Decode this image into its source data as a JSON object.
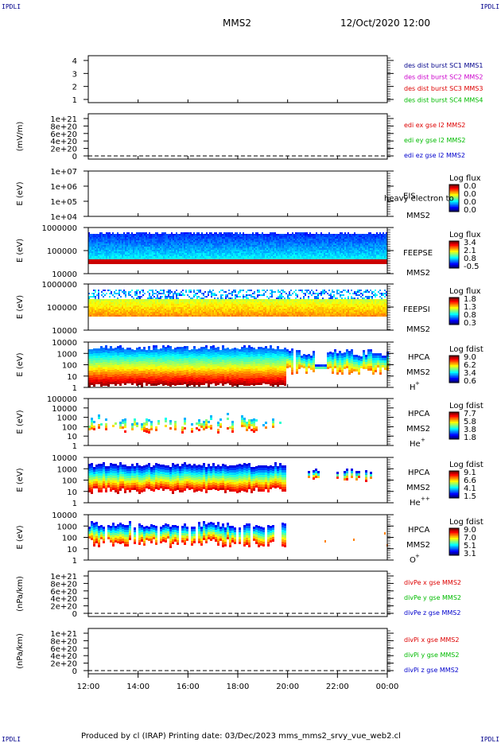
{
  "header": {
    "corner_tl": "IPDLI",
    "corner_tr": "IPDLI",
    "corner_bl": "IPDLI",
    "corner_br": "IPDLI",
    "spacecraft": "MMS2",
    "datetime": "12/Oct/2020 12:00"
  },
  "footer": {
    "text": "Produced by cl (IRAP)   Printing date: 03/Dec/2023   mms_mms2_srvy_vue_web2.cl"
  },
  "colors": {
    "mms1": "#00008b",
    "mms2": "#cc00cc",
    "mms3": "#dd0000",
    "mms4": "#00bb00",
    "red": "#dd0000",
    "green": "#00bb00",
    "blue": "#0000cc"
  },
  "chart_data": [
    {
      "type": "line",
      "id": "dist",
      "ticks": [
        "4",
        "3",
        "2",
        "1"
      ],
      "legend": [
        {
          "text": "des dist burst SC1 MMS1",
          "color": "#00008b"
        },
        {
          "text": "des dist burst SC2 MMS2",
          "color": "#cc00cc"
        },
        {
          "text": "des dist burst SC3 MMS3",
          "color": "#dd0000"
        },
        {
          "text": "des dist burst SC4 MMS4",
          "color": "#00bb00"
        }
      ]
    },
    {
      "type": "line",
      "id": "edi",
      "ylabel": "(mV/m)",
      "ticks": [
        "1e+21",
        "8e+20",
        "6e+20",
        "4e+20",
        "2e+20",
        "0"
      ],
      "legend": [
        {
          "text": "edi ex gse l2 MMS2",
          "color": "#dd0000"
        },
        {
          "text": "edi ey gse l2 MMS2",
          "color": "#00bb00"
        },
        {
          "text": "edi ez gse l2 MMS2",
          "color": "#0000cc"
        }
      ]
    },
    {
      "type": "heatmap",
      "id": "eis",
      "ylabel": "E (eV)",
      "ticks": [
        "1e+07",
        "1e+06",
        "1e+05",
        "1e+04"
      ],
      "instrument": "EIS",
      "instrument_extra": "heavy electron to",
      "sc": "MMS2",
      "cbar_title": "Log flux",
      "cbar_ticks": [
        "0.0",
        "0.0",
        "0.0",
        "0.0"
      ]
    },
    {
      "type": "heatmap",
      "id": "feepse",
      "ylabel": "E (eV)",
      "ticks": [
        "1000000",
        "100000",
        "10000"
      ],
      "instrument": "FEEPSE",
      "sc": "MMS2",
      "cbar_title": "Log flux",
      "cbar_ticks": [
        "3.4",
        "2.1",
        "0.8",
        "-0.5"
      ]
    },
    {
      "type": "heatmap",
      "id": "feepsi",
      "ylabel": "E (eV)",
      "ticks": [
        "1000000",
        "100000",
        "10000"
      ],
      "instrument": "FEEPSI",
      "sc": "MMS2",
      "cbar_title": "Log flux",
      "cbar_ticks": [
        "1.8",
        "1.3",
        "0.8",
        "0.3"
      ]
    },
    {
      "type": "heatmap",
      "id": "hpca_h",
      "ylabel": "E (eV)",
      "ticks": [
        "10000",
        "1000",
        "100",
        "10",
        "1"
      ],
      "instrument": "HPCA",
      "sc": "MMS2",
      "species": "H",
      "charge": "+",
      "cbar_title": "Log fdist",
      "cbar_ticks": [
        "9.0",
        "6.2",
        "3.4",
        "0.6"
      ]
    },
    {
      "type": "heatmap",
      "id": "hpca_he",
      "ylabel": "E (eV)",
      "ticks": [
        "100000",
        "10000",
        "1000",
        "100",
        "10",
        "1"
      ],
      "instrument": "HPCA",
      "sc": "MMS2",
      "species": "He",
      "charge": "+",
      "cbar_title": "Log fdist",
      "cbar_ticks": [
        "7.7",
        "5.8",
        "3.8",
        "1.8"
      ]
    },
    {
      "type": "heatmap",
      "id": "hpca_hepp",
      "ylabel": "E (eV)",
      "ticks": [
        "10000",
        "1000",
        "100",
        "10",
        "1"
      ],
      "instrument": "HPCA",
      "sc": "MMS2",
      "species": "He",
      "charge": "++",
      "cbar_title": "Log fdist",
      "cbar_ticks": [
        "9.1",
        "6.6",
        "4.1",
        "1.5"
      ]
    },
    {
      "type": "heatmap",
      "id": "hpca_o",
      "ylabel": "E (eV)",
      "ticks": [
        "10000",
        "1000",
        "100",
        "10",
        "1"
      ],
      "instrument": "HPCA",
      "sc": "MMS2",
      "species": "O",
      "charge": "+",
      "cbar_title": "Log fdist",
      "cbar_ticks": [
        "9.0",
        "7.0",
        "5.1",
        "3.1"
      ]
    },
    {
      "type": "line",
      "id": "divpe",
      "ylabel": "(nPa/km)",
      "ticks": [
        "1e+21",
        "8e+20",
        "6e+20",
        "4e+20",
        "2e+20",
        "0"
      ],
      "legend": [
        {
          "text": "divPe x gse MMS2",
          "color": "#dd0000"
        },
        {
          "text": "divPe y gse MMS2",
          "color": "#00bb00"
        },
        {
          "text": "divPe z gse MMS2",
          "color": "#0000cc"
        }
      ]
    },
    {
      "type": "line",
      "id": "divpi",
      "ylabel": "(nPa/km)",
      "ticks": [
        "1e+21",
        "8e+20",
        "6e+20",
        "4e+20",
        "2e+20",
        "0"
      ],
      "legend": [
        {
          "text": "divPi x gse MMS2",
          "color": "#dd0000"
        },
        {
          "text": "divPi y gse MMS2",
          "color": "#00bb00"
        },
        {
          "text": "divPi z gse MMS2",
          "color": "#0000cc"
        }
      ]
    }
  ],
  "x_axis": {
    "ticks": [
      "12:00",
      "14:00",
      "16:00",
      "18:00",
      "20:00",
      "22:00",
      "00:00"
    ]
  }
}
